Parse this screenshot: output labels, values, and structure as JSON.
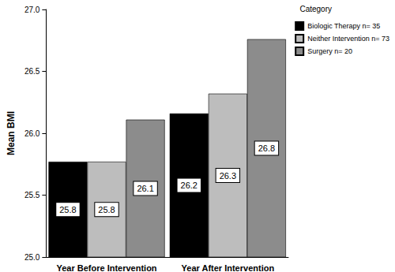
{
  "chart_data": {
    "type": "bar",
    "y_label": "Mean BMI",
    "legend_title": "Category",
    "categories": [
      "Year Before Intervention",
      "Year After Intervention"
    ],
    "series": [
      {
        "name": "Biologic Therapy n= 35",
        "color": "#000000",
        "values": [
          25.77,
          26.16
        ],
        "value_labels": [
          "25.8",
          "26.2"
        ]
      },
      {
        "name": "Neither Intervention n= 73",
        "color": "#bdbdbd",
        "values": [
          25.77,
          26.32
        ],
        "value_labels": [
          "25.8",
          "26.3"
        ]
      },
      {
        "name": "Surgery n= 20",
        "color": "#8c8c8c",
        "values": [
          26.11,
          26.76
        ],
        "value_labels": [
          "26.1",
          "26.8"
        ]
      }
    ],
    "ylim": [
      25,
      27
    ],
    "yticks": [
      {
        "value": 25,
        "label": "25.0"
      },
      {
        "value": 25.5,
        "label": "25.5"
      },
      {
        "value": 26,
        "label": "26.0"
      },
      {
        "value": 26.5,
        "label": "26.5"
      },
      {
        "value": 27,
        "label": "27.0"
      }
    ],
    "grid": false,
    "legend": "top-right",
    "data_labels": true
  }
}
